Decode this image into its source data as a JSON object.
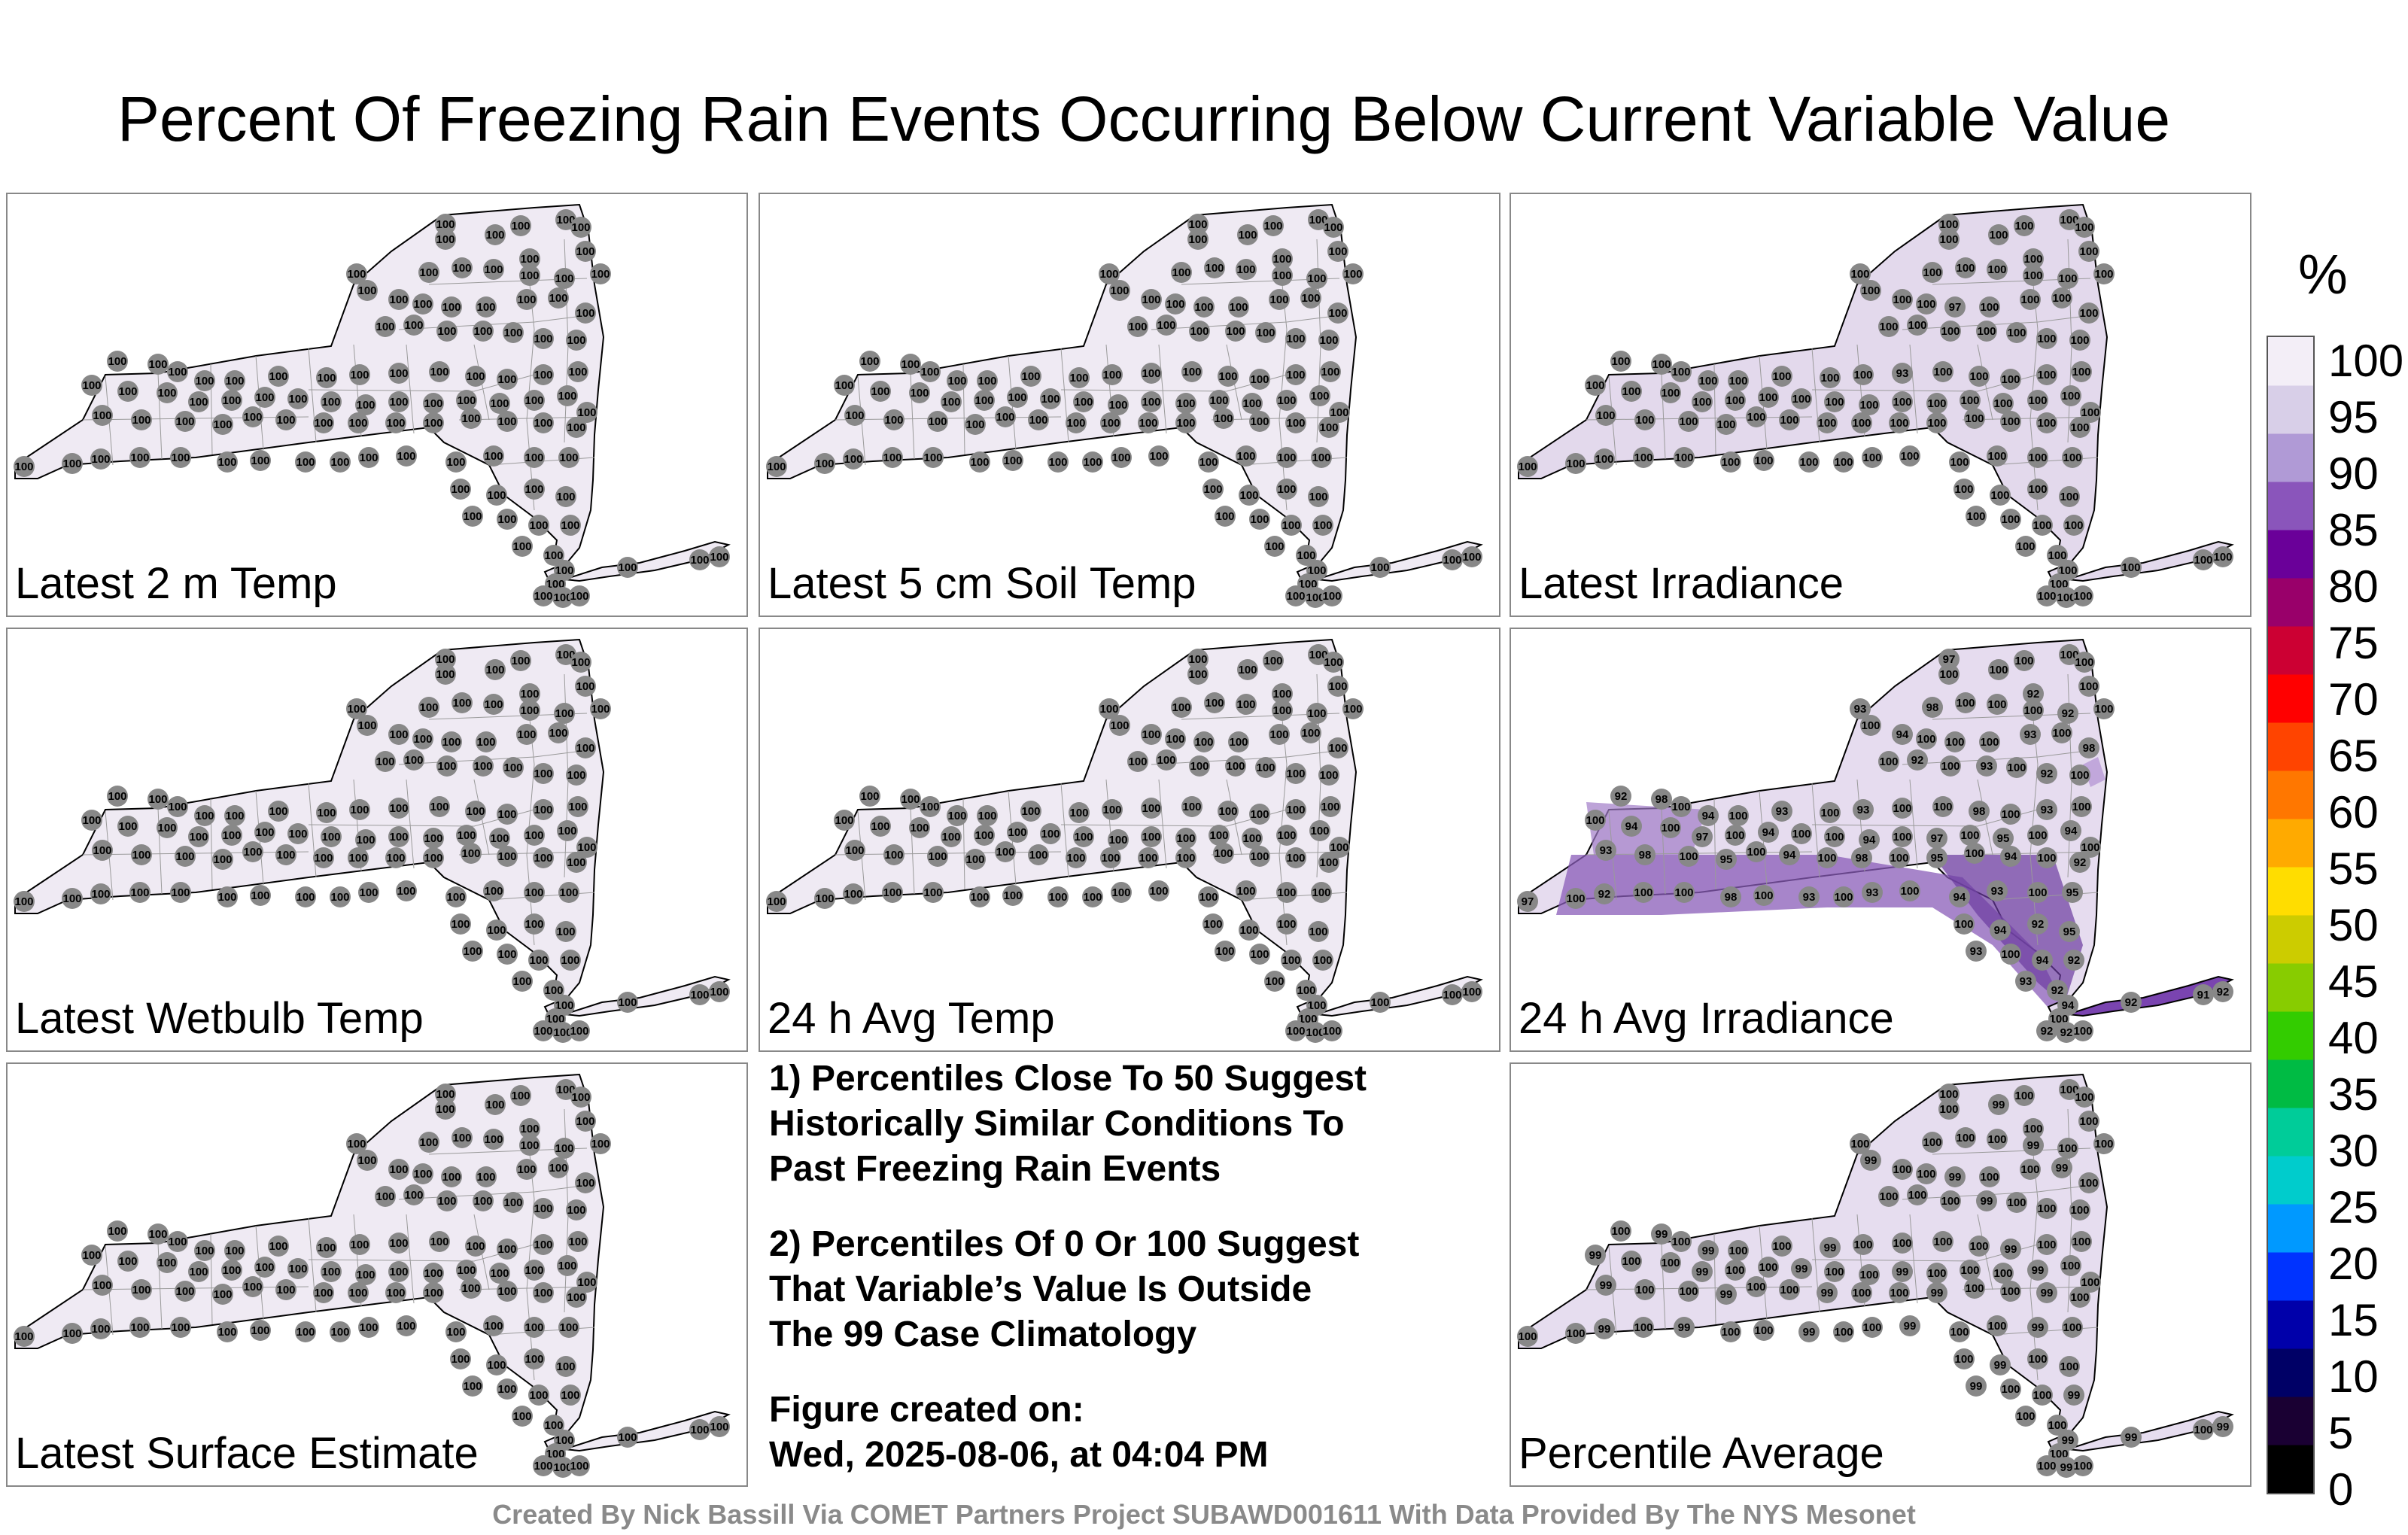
{
  "title": "Percent Of Freezing Rain Events Occurring Below Current Variable Value",
  "panels": [
    {
      "label": "Latest 2 m Temp",
      "fill": "#efeaf3",
      "mode": "all100"
    },
    {
      "label": "Latest 5 cm Soil Temp",
      "fill": "#efeaf3",
      "mode": "all100"
    },
    {
      "label": "Latest Irradiance",
      "fill": "#e3d9ec",
      "mode": "irr"
    },
    {
      "label": "Latest Wetbulb Temp",
      "fill": "#efeaf3",
      "mode": "all100"
    },
    {
      "label": "24 h Avg Temp",
      "fill": "#efeaf3",
      "mode": "all100"
    },
    {
      "label": "24 h Avg Irradiance",
      "fill": "#e6dcef",
      "mode": "avg"
    },
    {
      "label": "Latest Surface Estimate",
      "fill": "#efeaf3",
      "mode": "all100"
    },
    {
      "label": "Percentile Average",
      "fill": "#e6ddef",
      "mode": "pavg"
    }
  ],
  "notes": [
    "1) Percentiles Close To 50 Suggest\nHistorically Similar Conditions To\nPast Freezing Rain Events",
    "2) Percentiles Of 0 Or 100 Suggest\nThat Variable’s Value Is Outside\nThe 99 Case Climatology",
    "Figure created on:\nWed, 2025-08-06, at 04:04 PM"
  ],
  "credit": "Created By Nick Bassill Via COMET Partners Project SUBAWD001611 With Data Provided By The NYS Mesonet",
  "colorbar": {
    "unit": "%",
    "ticks": [
      "0",
      "5",
      "10",
      "15",
      "20",
      "25",
      "30",
      "35",
      "40",
      "45",
      "50",
      "55",
      "60",
      "65",
      "70",
      "75",
      "80",
      "85",
      "90",
      "95",
      "100"
    ],
    "colors": [
      "#000000",
      "#1a0033",
      "#000066",
      "#0000aa",
      "#0033ff",
      "#0099ff",
      "#00cccc",
      "#00cc99",
      "#00bb44",
      "#33cc00",
      "#88cc00",
      "#cccc00",
      "#ffdd00",
      "#ffaa00",
      "#ff7700",
      "#ff4400",
      "#ff0000",
      "#cc0033",
      "#99006a",
      "#6a0099",
      "#8a55bb",
      "#b09ad6",
      "#d8cfe8",
      "#f3eef7"
    ]
  },
  "map_legend": {
    "station_marker_color": "#888888",
    "state_outline_color": "#000000",
    "county_line_color": "#9a9a9a"
  }
}
